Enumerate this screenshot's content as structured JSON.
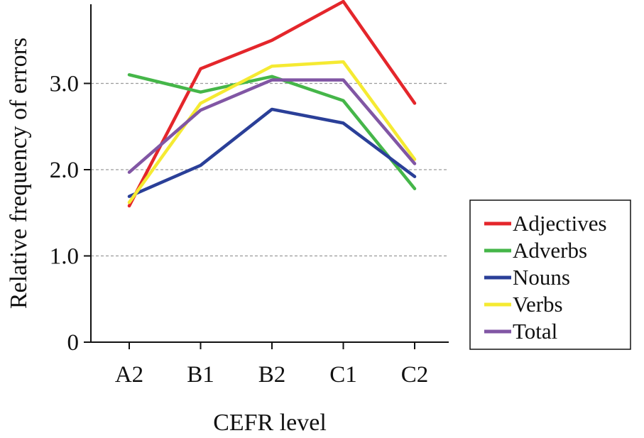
{
  "chart_data": {
    "type": "line",
    "xlabel": "CEFR level",
    "ylabel": "Relative frequency of errors",
    "categories": [
      "A2",
      "B1",
      "B2",
      "C1",
      "C2"
    ],
    "ylim": [
      0,
      3.95
    ],
    "yticks": [
      0,
      1.0,
      2.0,
      3.0
    ],
    "ytick_labels": [
      "0",
      "1.0",
      "2.0",
      "3.0"
    ],
    "grid": "horizontal dashed at 1.0, 2.0, 3.0",
    "legend_position": "right",
    "series": [
      {
        "name": "Adjectives",
        "color": "#e4262b",
        "values": [
          1.58,
          3.17,
          3.5,
          3.95,
          2.77
        ]
      },
      {
        "name": "Adverbs",
        "color": "#45b649",
        "values": [
          3.1,
          2.9,
          3.08,
          2.8,
          1.78
        ]
      },
      {
        "name": "Nouns",
        "color": "#2a3f98",
        "values": [
          1.69,
          2.05,
          2.7,
          2.54,
          1.92
        ]
      },
      {
        "name": "Verbs",
        "color": "#f5ea32",
        "values": [
          1.62,
          2.77,
          3.2,
          3.25,
          2.12
        ]
      },
      {
        "name": "Total",
        "color": "#8156a4",
        "values": [
          1.97,
          2.69,
          3.04,
          3.04,
          2.07
        ]
      }
    ]
  }
}
